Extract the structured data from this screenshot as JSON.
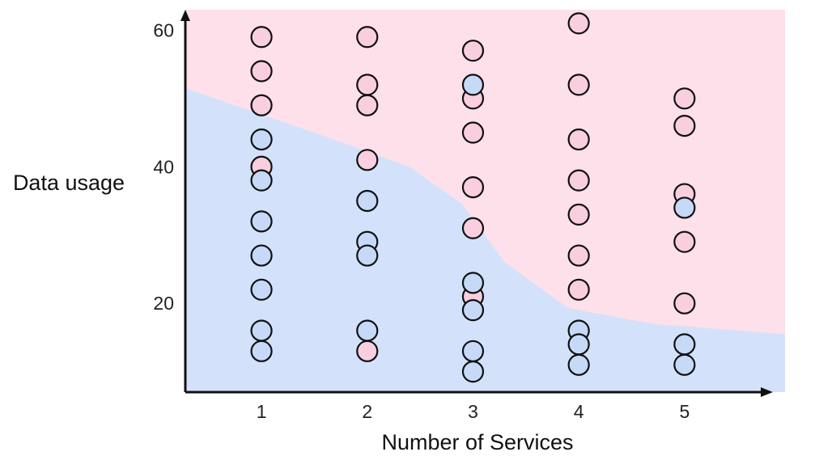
{
  "chart_data": {
    "type": "scatter",
    "title": "",
    "xlabel": "Number of Services",
    "ylabel": "Data usage",
    "x_ticks": [
      1,
      2,
      3,
      4,
      5
    ],
    "y_ticks": [
      20,
      40,
      60
    ],
    "xlim": [
      0.28,
      5.95
    ],
    "ylim": [
      7,
      63
    ],
    "grid": false,
    "legend": "none",
    "colors": {
      "pink": "#f9cede",
      "blue": "#c6d9f7",
      "region_pink": "#fde0ea",
      "region_blue": "#d3e2fa",
      "axis": "#111111"
    },
    "decision_boundary": [
      {
        "x": 0.28,
        "y": 51.5
      },
      {
        "x": 1.5,
        "y": 45
      },
      {
        "x": 2.4,
        "y": 40
      },
      {
        "x": 2.9,
        "y": 34.5
      },
      {
        "x": 3.3,
        "y": 26
      },
      {
        "x": 3.9,
        "y": 19.3
      },
      {
        "x": 4.7,
        "y": 17
      },
      {
        "x": 5.95,
        "y": 15.5
      }
    ],
    "series": [
      {
        "color": "pink",
        "points": [
          {
            "x": 1,
            "y": 59
          },
          {
            "x": 1,
            "y": 54
          },
          {
            "x": 1,
            "y": 49
          },
          {
            "x": 1,
            "y": 40
          },
          {
            "x": 2,
            "y": 59
          },
          {
            "x": 2,
            "y": 52
          },
          {
            "x": 2,
            "y": 49
          },
          {
            "x": 2,
            "y": 41
          },
          {
            "x": 2,
            "y": 13
          },
          {
            "x": 3,
            "y": 57
          },
          {
            "x": 3,
            "y": 50
          },
          {
            "x": 3,
            "y": 45
          },
          {
            "x": 3,
            "y": 37
          },
          {
            "x": 3,
            "y": 31
          },
          {
            "x": 3,
            "y": 21
          },
          {
            "x": 4,
            "y": 61
          },
          {
            "x": 4,
            "y": 52
          },
          {
            "x": 4,
            "y": 44
          },
          {
            "x": 4,
            "y": 38
          },
          {
            "x": 4,
            "y": 33
          },
          {
            "x": 4,
            "y": 27
          },
          {
            "x": 4,
            "y": 22
          },
          {
            "x": 5,
            "y": 50
          },
          {
            "x": 5,
            "y": 46
          },
          {
            "x": 5,
            "y": 36
          },
          {
            "x": 5,
            "y": 29
          },
          {
            "x": 5,
            "y": 20
          }
        ]
      },
      {
        "color": "blue",
        "points": [
          {
            "x": 1,
            "y": 44
          },
          {
            "x": 1,
            "y": 38
          },
          {
            "x": 1,
            "y": 32
          },
          {
            "x": 1,
            "y": 27
          },
          {
            "x": 1,
            "y": 22
          },
          {
            "x": 1,
            "y": 16
          },
          {
            "x": 1,
            "y": 13
          },
          {
            "x": 2,
            "y": 35
          },
          {
            "x": 2,
            "y": 29
          },
          {
            "x": 2,
            "y": 27
          },
          {
            "x": 2,
            "y": 16
          },
          {
            "x": 3,
            "y": 52
          },
          {
            "x": 3,
            "y": 23
          },
          {
            "x": 3,
            "y": 19
          },
          {
            "x": 3,
            "y": 13
          },
          {
            "x": 3,
            "y": 10
          },
          {
            "x": 4,
            "y": 16
          },
          {
            "x": 4,
            "y": 14
          },
          {
            "x": 4,
            "y": 11
          },
          {
            "x": 5,
            "y": 34
          },
          {
            "x": 5,
            "y": 14
          },
          {
            "x": 5,
            "y": 11
          }
        ]
      }
    ]
  }
}
